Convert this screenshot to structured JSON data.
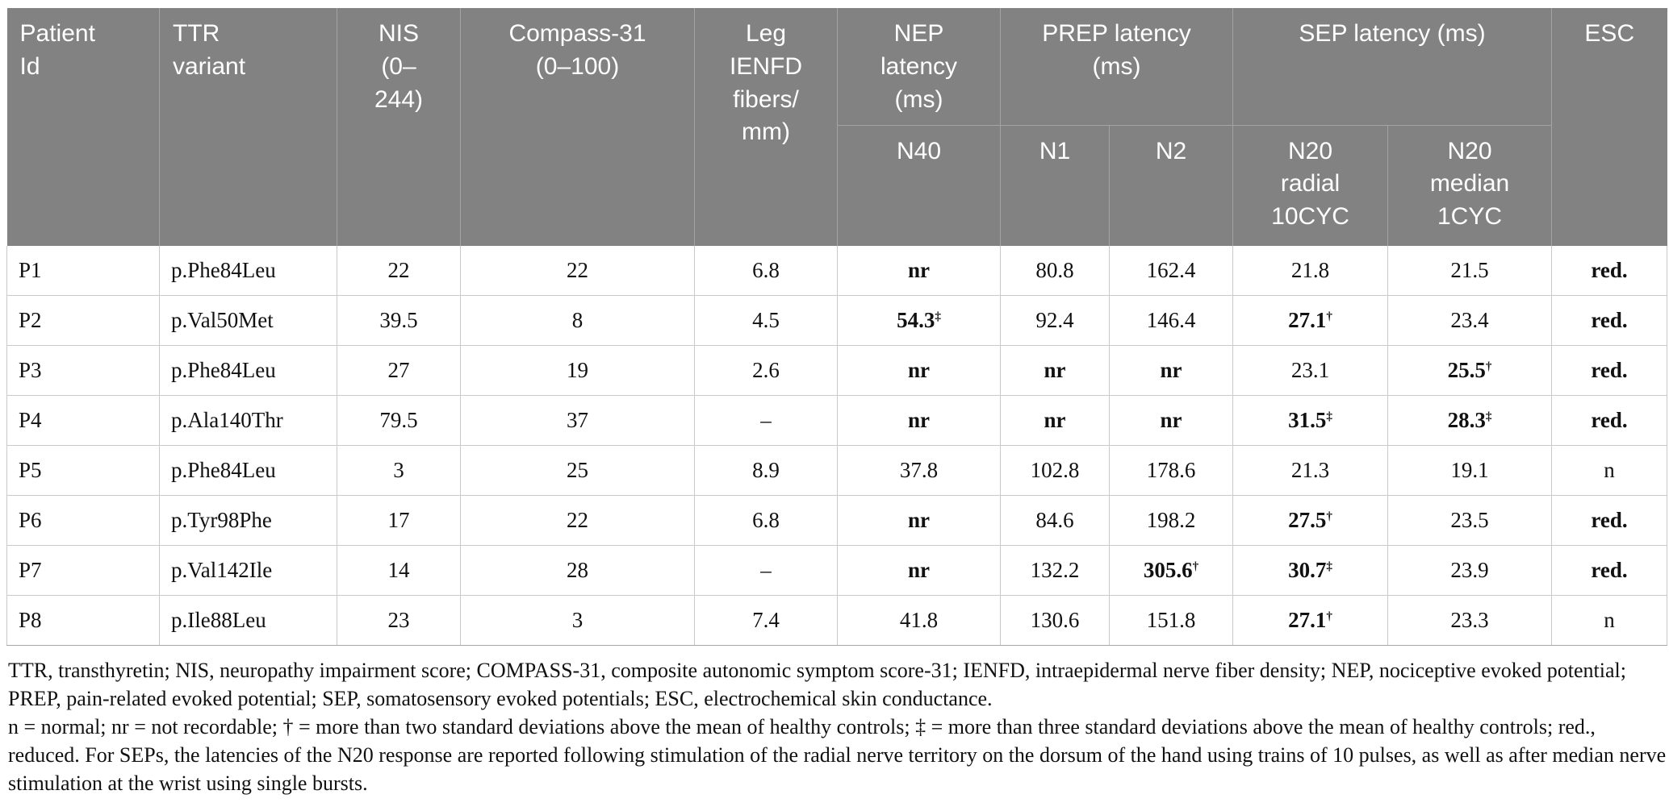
{
  "colors": {
    "header_bg": "#828282",
    "header_text": "#ffffff",
    "header_divider": "#a3a3a3",
    "body_divider": "#c9c9c9",
    "table_bottom_border": "#a8a8a8",
    "text": "#111111"
  },
  "table": {
    "header": {
      "patient_id": "Patient\nId",
      "ttr_variant": "TTR\nvariant",
      "nis": "NIS\n(0–\n244)",
      "compass31": "Compass-31\n(0–100)",
      "leg_ienfd": "Leg\nIENFD\nfibers/\nmm)",
      "nep_latency": "NEP\nlatency\n(ms)",
      "prep_latency": "PREP latency\n(ms)",
      "sep_latency": "SEP latency (ms)",
      "esc": "ESC",
      "sub": {
        "n40": "N40",
        "n1": "N1",
        "n2": "N2",
        "n20_radial": "N20\nradial\n10CYC",
        "n20_median": "N20\nmedian\n1CYC"
      }
    },
    "rows": [
      {
        "id": "P1",
        "variant": "p.Phe84Leu",
        "nis": "22",
        "compass": "22",
        "ienfd": "6.8",
        "n40": {
          "v": "nr",
          "b": true
        },
        "n1": "80.8",
        "n2": "162.4",
        "n20_radial": "21.8",
        "n20_median": "21.5",
        "esc": {
          "v": "red.",
          "b": true
        }
      },
      {
        "id": "P2",
        "variant": "p.Val50Met",
        "nis": "39.5",
        "compass": "8",
        "ienfd": "4.5",
        "n40": {
          "v": "54.3",
          "b": true,
          "sup": "‡"
        },
        "n1": "92.4",
        "n2": "146.4",
        "n20_radial": {
          "v": "27.1",
          "b": true,
          "sup": "†"
        },
        "n20_median": "23.4",
        "esc": {
          "v": "red.",
          "b": true
        }
      },
      {
        "id": "P3",
        "variant": "p.Phe84Leu",
        "nis": "27",
        "compass": "19",
        "ienfd": "2.6",
        "n40": {
          "v": "nr",
          "b": true
        },
        "n1": {
          "v": "nr",
          "b": true
        },
        "n2": {
          "v": "nr",
          "b": true
        },
        "n20_radial": "23.1",
        "n20_median": {
          "v": "25.5",
          "b": true,
          "sup": "†"
        },
        "esc": {
          "v": "red.",
          "b": true
        }
      },
      {
        "id": "P4",
        "variant": "p.Ala140Thr",
        "nis": "79.5",
        "compass": "37",
        "ienfd": "–",
        "n40": {
          "v": "nr",
          "b": true
        },
        "n1": {
          "v": "nr",
          "b": true
        },
        "n2": {
          "v": "nr",
          "b": true
        },
        "n20_radial": {
          "v": "31.5",
          "b": true,
          "sup": "‡"
        },
        "n20_median": {
          "v": "28.3",
          "b": true,
          "sup": "‡"
        },
        "esc": {
          "v": "red.",
          "b": true
        }
      },
      {
        "id": "P5",
        "variant": "p.Phe84Leu",
        "nis": "3",
        "compass": "25",
        "ienfd": "8.9",
        "n40": "37.8",
        "n1": "102.8",
        "n2": "178.6",
        "n20_radial": "21.3",
        "n20_median": "19.1",
        "esc": "n"
      },
      {
        "id": "P6",
        "variant": "p.Tyr98Phe",
        "nis": "17",
        "compass": "22",
        "ienfd": "6.8",
        "n40": {
          "v": "nr",
          "b": true
        },
        "n1": "84.6",
        "n2": "198.2",
        "n20_radial": {
          "v": "27.5",
          "b": true,
          "sup": "†"
        },
        "n20_median": "23.5",
        "esc": {
          "v": "red.",
          "b": true
        }
      },
      {
        "id": "P7",
        "variant": "p.Val142Ile",
        "nis": "14",
        "compass": "28",
        "ienfd": "–",
        "n40": {
          "v": "nr",
          "b": true
        },
        "n1": "132.2",
        "n2": {
          "v": "305.6",
          "b": true,
          "sup": "†"
        },
        "n20_radial": {
          "v": "30.7",
          "b": true,
          "sup": "‡"
        },
        "n20_median": "23.9",
        "esc": {
          "v": "red.",
          "b": true
        }
      },
      {
        "id": "P8",
        "variant": "p.Ile88Leu",
        "nis": "23",
        "compass": "3",
        "ienfd": "7.4",
        "n40": "41.8",
        "n1": "130.6",
        "n2": "151.8",
        "n20_radial": {
          "v": "27.1",
          "b": true,
          "sup": "†"
        },
        "n20_median": "23.3",
        "esc": "n"
      }
    ]
  },
  "footnotes": {
    "abbreviations": "TTR, transthyretin; NIS, neuropathy impairment score; COMPASS-31, composite autonomic symptom score-31; IENFD, intraepidermal nerve fiber density; NEP, nociceptive evoked potential; PREP, pain-related evoked potential; SEP, somatosensory evoked potentials; ESC, electrochemical skin conductance.",
    "symbols": "n = normal; nr = not recordable; † = more than two standard deviations above the mean of healthy controls; ‡ = more than three standard deviations above the mean of healthy controls; red., reduced. For SEPs, the latencies of the N20 response are reported following stimulation of the radial nerve territory on the dorsum of the hand using trains of 10 pulses, as well as after median nerve stimulation at the wrist using single bursts."
  }
}
